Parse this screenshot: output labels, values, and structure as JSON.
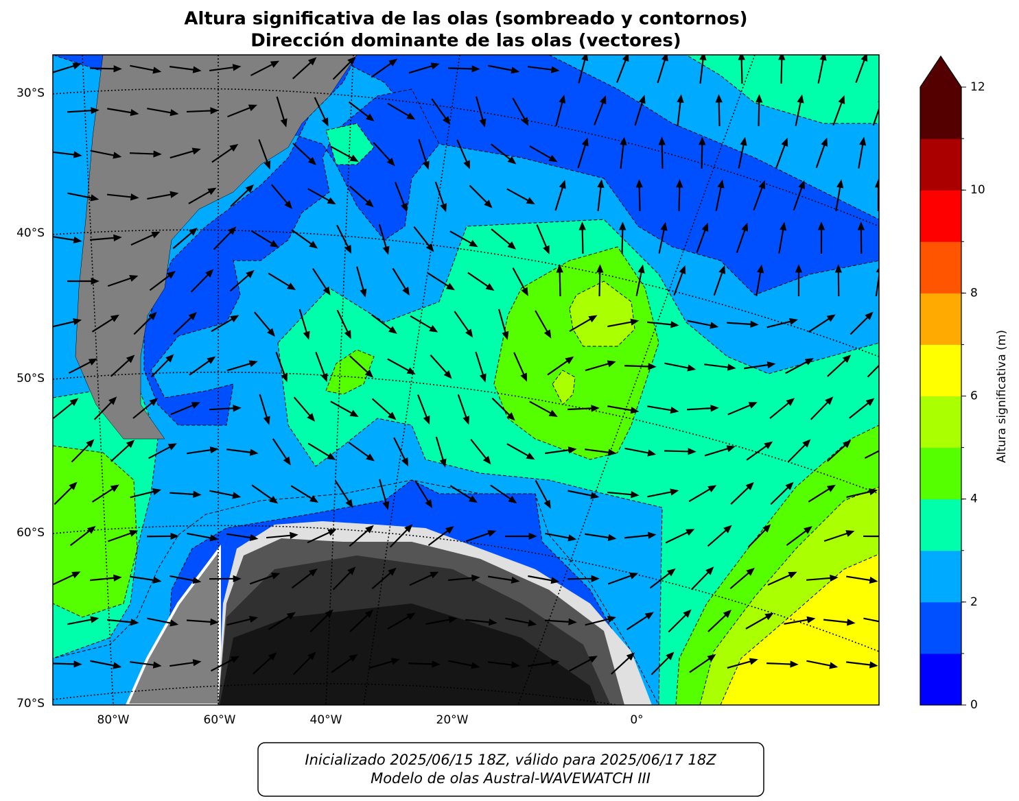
{
  "title": "Altura significativa de las olas (sombreado y contornos)",
  "subtitle": "Dirección dominante de las olas (vectores)",
  "map": {
    "lat_labels": [
      "30°S",
      "40°S",
      "50°S",
      "60°S",
      "70°S"
    ],
    "lon_labels": [
      "80°W",
      "60°W",
      "40°W",
      "20°W",
      "0°"
    ]
  },
  "colorbar": {
    "label": "Altura significativa (m)",
    "levels": [
      0,
      1,
      2,
      3,
      4,
      5,
      6,
      7,
      8,
      9,
      10,
      11,
      12
    ],
    "colors": [
      "#0000ff",
      "#0050ff",
      "#00aaff",
      "#00ffaa",
      "#55ff00",
      "#aaff00",
      "#ffff00",
      "#ffaa00",
      "#ff5500",
      "#ff0000",
      "#aa0000",
      "#550000"
    ],
    "extend_color": "#550000",
    "ticks": [
      0,
      2,
      4,
      6,
      8,
      10,
      12
    ]
  },
  "footer": {
    "line1": "Inicializado 2025/06/15 18Z, válido para 2025/06/17 18Z",
    "line2": "Modelo de olas Austral-WAVEWATCH III"
  }
}
